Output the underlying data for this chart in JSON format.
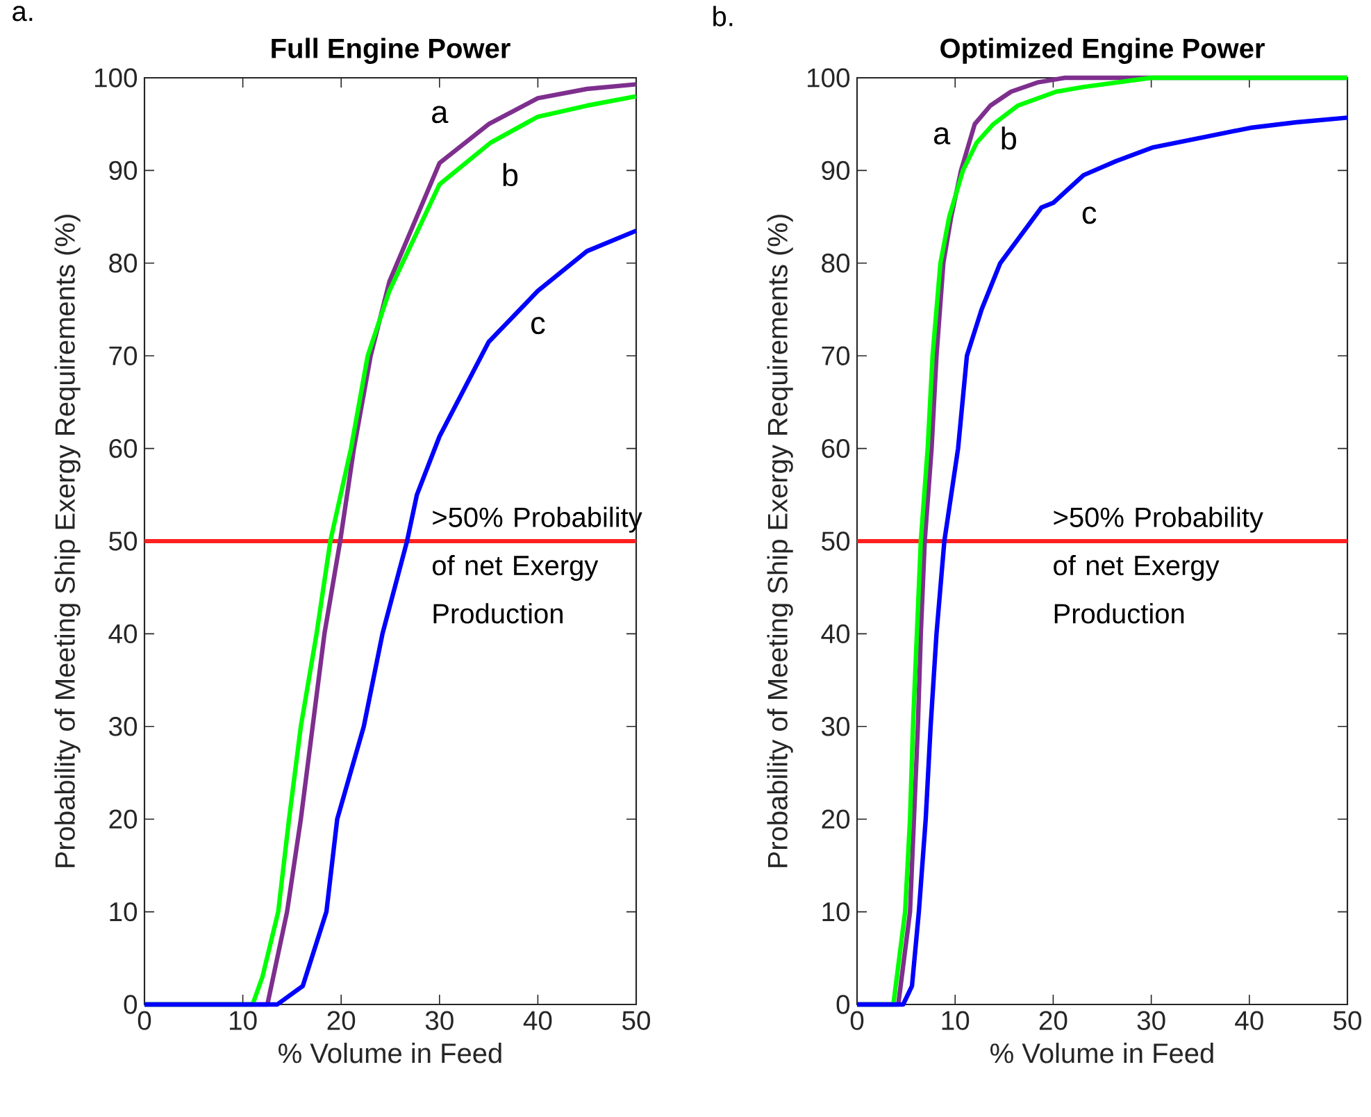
{
  "chart_data": [
    {
      "type": "line",
      "title": "Full Engine Power",
      "xlabel": "% Volume in Feed",
      "ylabel": "Probability of Meeting Ship Exergy Requirements (%)",
      "annotations": [
        "a."
      ],
      "xlim": [
        0,
        50
      ],
      "ylim": [
        0,
        100
      ],
      "xticks": [
        0,
        10,
        20,
        30,
        40,
        50
      ],
      "yticks": [
        0,
        10,
        20,
        30,
        40,
        50,
        60,
        70,
        80,
        90,
        100
      ],
      "series": [
        {
          "name": "a",
          "color": "#7e2f8e",
          "x": [
            0,
            12.5,
            14.5,
            15.9,
            17.1,
            18.3,
            19.9,
            21.3,
            23,
            24.9,
            30,
            35,
            40,
            45,
            50
          ],
          "values": [
            0,
            0,
            10,
            20,
            30,
            40,
            50,
            60,
            70,
            78,
            90.8,
            95,
            97.8,
            98.8,
            99.3
          ]
        },
        {
          "name": "b",
          "color": "#00ff00",
          "x": [
            0,
            11,
            12,
            13.6,
            14.7,
            15.9,
            17.5,
            18.9,
            21,
            22.7,
            24.9,
            30,
            35.2,
            40,
            45,
            50
          ],
          "values": [
            0,
            0,
            3,
            10,
            20,
            30,
            40,
            50,
            60,
            70,
            77,
            88.5,
            93,
            95.8,
            97,
            98
          ]
        },
        {
          "name": "c",
          "color": "#0000ff",
          "x": [
            0,
            13.5,
            16.1,
            18.5,
            19.6,
            22.3,
            24.2,
            26.7,
            27.7,
            30,
            35,
            40,
            45,
            50
          ],
          "values": [
            0,
            0,
            2,
            10,
            20,
            30,
            40,
            50,
            55,
            61.3,
            71.5,
            77,
            81.3,
            83.5
          ]
        }
      ],
      "ref_lines": [
        {
          "axis": "y",
          "value": 50,
          "label": ">50% Probability of net Exergy Production",
          "color": "#ff2020"
        }
      ]
    },
    {
      "type": "line",
      "title": "Optimized Engine Power",
      "xlabel": "% Volume in Feed",
      "ylabel": "Probability of Meeting Ship Exergy Requirements (%)",
      "annotations": [
        "b."
      ],
      "xlim": [
        0,
        50
      ],
      "ylim": [
        0,
        100
      ],
      "xticks": [
        0,
        10,
        20,
        30,
        40,
        50
      ],
      "yticks": [
        0,
        10,
        20,
        30,
        40,
        50,
        60,
        70,
        80,
        90,
        100
      ],
      "series": [
        {
          "name": "a",
          "color": "#7e2f8e",
          "x": [
            0,
            4.2,
            5.4,
            5.8,
            6.2,
            6.5,
            6.9,
            7.6,
            8.1,
            8.8,
            9.6,
            10.6,
            12,
            13.6,
            15.7,
            18.4,
            21.2,
            50
          ],
          "values": [
            0,
            0,
            10,
            20,
            30,
            40,
            50,
            60,
            70,
            80,
            85,
            90,
            95,
            97,
            98.5,
            99.5,
            100,
            100
          ]
        },
        {
          "name": "b",
          "color": "#00ff00",
          "x": [
            0,
            3.7,
            4.9,
            5.4,
            5.7,
            6.1,
            6.5,
            7.2,
            7.7,
            8.5,
            9.4,
            10.8,
            12.2,
            13.9,
            16.4,
            20.3,
            23,
            30,
            50
          ],
          "values": [
            0,
            0,
            10,
            20,
            30,
            40,
            50,
            60,
            70,
            80,
            85,
            90,
            93,
            95,
            97,
            98.5,
            99,
            100,
            100
          ]
        },
        {
          "name": "c",
          "color": "#0000ff",
          "x": [
            0,
            4.7,
            5.6,
            6.3,
            7,
            7.5,
            8.1,
            8.9,
            10.3,
            11.2,
            12.7,
            14.6,
            18.8,
            20,
            23.1,
            26.4,
            30.2,
            35.4,
            40.1,
            44.8,
            50
          ],
          "values": [
            0,
            0,
            2,
            10,
            20,
            30,
            40,
            50,
            60,
            70,
            75,
            80,
            86,
            86.5,
            89.5,
            91,
            92.5,
            93.6,
            94.6,
            95.2,
            95.7
          ]
        }
      ],
      "ref_lines": [
        {
          "axis": "y",
          "value": 50,
          "label": ">50% Probability of net Exergy Production",
          "color": "#ff2020"
        }
      ]
    }
  ]
}
